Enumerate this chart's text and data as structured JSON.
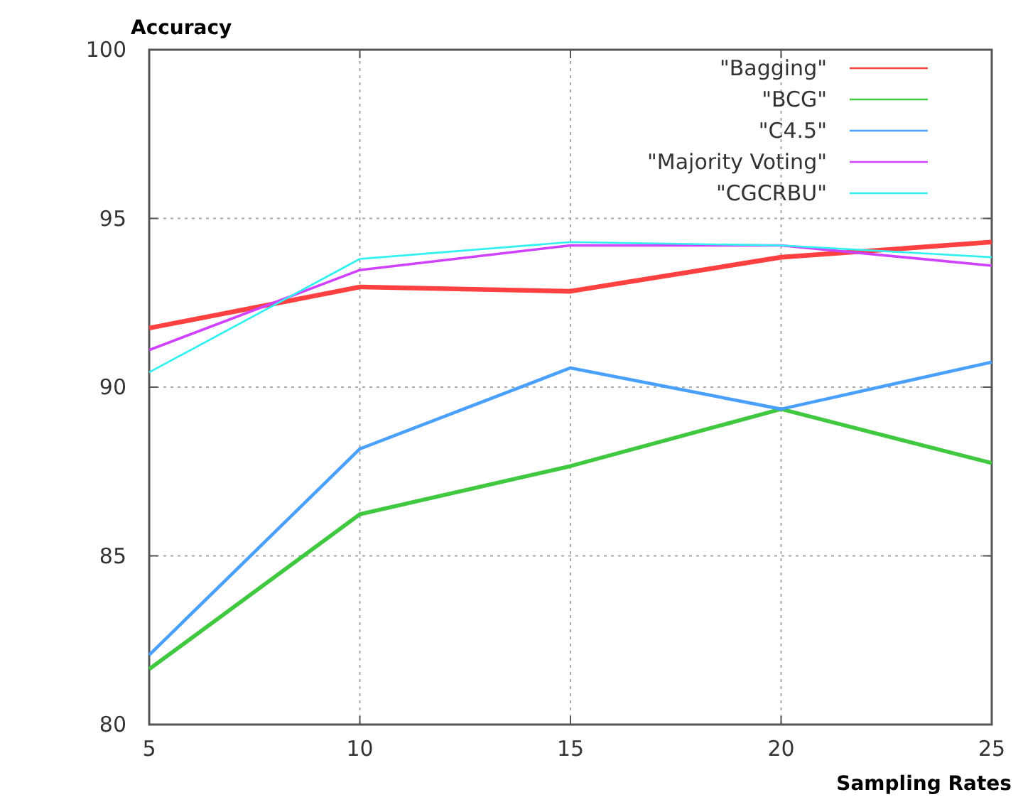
{
  "chart_data": {
    "type": "line",
    "xlabel": "Sampling Rates",
    "ylabel": "Accuracy",
    "x": [
      5,
      10,
      15,
      20,
      25
    ],
    "xlim": [
      5,
      25
    ],
    "xticks": [
      5,
      10,
      15,
      20,
      25
    ],
    "ylim": [
      80,
      100
    ],
    "yticks": [
      80,
      85,
      90,
      95,
      100
    ],
    "grid": true,
    "legend": "top right",
    "marker": "none",
    "line_style": "solid",
    "series": [
      {
        "name": "\"Bagging\"",
        "color": "#ff4040",
        "values": [
          91.75,
          92.97,
          92.84,
          93.85,
          94.3
        ]
      },
      {
        "name": "\"BCG\"",
        "color": "#40c840",
        "values": [
          81.64,
          86.23,
          87.66,
          89.35,
          87.75
        ]
      },
      {
        "name": "\"C4.5\"",
        "color": "#4aa0ff",
        "values": [
          82.06,
          88.17,
          90.57,
          89.35,
          90.74
        ]
      },
      {
        "name": "\"Majority Voting\"",
        "color": "#d040ff",
        "values": [
          91.1,
          93.47,
          94.2,
          94.2,
          93.6
        ]
      },
      {
        "name": "\"CGCRBU\"",
        "color": "#30f0f0",
        "values": [
          90.44,
          93.8,
          94.3,
          94.2,
          93.85
        ]
      }
    ]
  }
}
